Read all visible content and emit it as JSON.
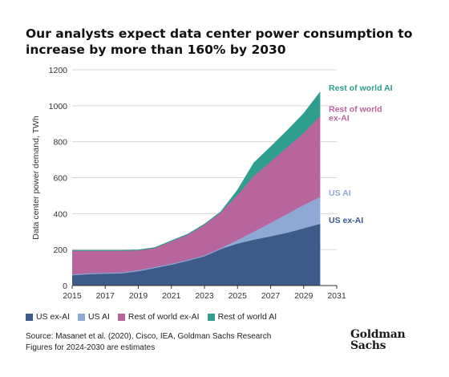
{
  "title": "Our analysts expect data center power consumption to increase by more than 160% by 2030",
  "chart_data": {
    "type": "area",
    "stacked": true,
    "ylabel": "Data center power demand, TWh",
    "ylim": [
      0,
      1200
    ],
    "yticks": [
      0,
      200,
      400,
      600,
      800,
      1000,
      1200
    ],
    "xlim": [
      2015,
      2031
    ],
    "xticks": [
      2015,
      2017,
      2019,
      2021,
      2023,
      2025,
      2027,
      2029,
      2031
    ],
    "x": [
      2015,
      2016,
      2017,
      2018,
      2019,
      2020,
      2021,
      2022,
      2023,
      2024,
      2025,
      2026,
      2027,
      2028,
      2029,
      2030
    ],
    "series": [
      {
        "name": "US ex-AI",
        "color": "#3d5a88",
        "values": [
          60,
          65,
          68,
          70,
          82,
          100,
          118,
          140,
          165,
          200,
          230,
          252,
          270,
          290,
          315,
          340
        ]
      },
      {
        "name": "US AI",
        "color": "#8fa9d4",
        "values": [
          0,
          0,
          0,
          0,
          0,
          0,
          0,
          0,
          0,
          5,
          20,
          45,
          75,
          105,
          130,
          150
        ]
      },
      {
        "name": "Rest of world ex-AI",
        "color": "#b8659e",
        "values": [
          135,
          130,
          127,
          125,
          115,
          110,
          130,
          145,
          175,
          200,
          250,
          310,
          340,
          370,
          400,
          450
        ]
      },
      {
        "name": "Rest of world AI",
        "color": "#2e9e8e",
        "values": [
          0,
          0,
          0,
          0,
          0,
          0,
          0,
          0,
          0,
          5,
          30,
          75,
          85,
          95,
          110,
          135
        ]
      }
    ],
    "end_labels": [
      {
        "text": "Rest of world AI",
        "color": "#2e9e8e"
      },
      {
        "text": "Rest of world\nex-AI",
        "color": "#b8659e"
      },
      {
        "text": "US AI",
        "color": "#8fa9d4"
      },
      {
        "text": "US ex-AI",
        "color": "#3d5a88"
      }
    ],
    "grid": true,
    "legend": "bottom"
  },
  "legend": [
    {
      "label": "US ex-AI",
      "color": "#3d5a88"
    },
    {
      "label": "US AI",
      "color": "#8fa9d4"
    },
    {
      "label": "Rest of world ex-AI",
      "color": "#b8659e"
    },
    {
      "label": "Rest of world AI",
      "color": "#2e9e8e"
    }
  ],
  "source": {
    "line1": "Source: Masanet et al. (2020), Cisco, IEA, Goldman Sachs Research",
    "line2": "Figures for 2024-2030 are estimates"
  },
  "logo": {
    "line1": "Goldman",
    "line2": "Sachs"
  }
}
